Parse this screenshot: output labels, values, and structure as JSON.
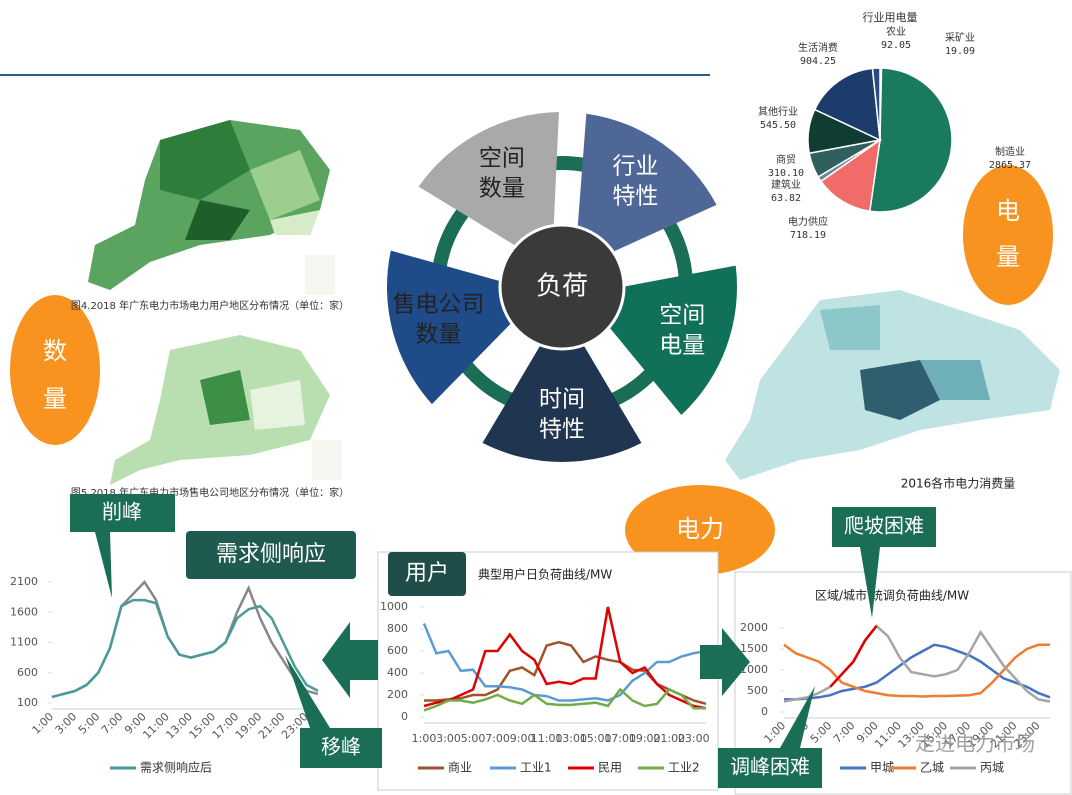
{
  "center": {
    "hub": "负荷",
    "petals": [
      [
        "空间",
        "数量"
      ],
      [
        "行业",
        "特性"
      ],
      [
        "空间",
        "电量"
      ],
      [
        "时间",
        "特性"
      ],
      [
        "售电公司",
        "数量"
      ]
    ]
  },
  "ovals": {
    "quantity": [
      "数",
      "量"
    ],
    "energy": [
      "电",
      "量"
    ],
    "power": "电力"
  },
  "maps": {
    "users_caption": "图4.2018 年广东电力市场电力用户地区分布情况（单位：家）",
    "sellers_caption": "图5.2018 年广东电力市场售电公司地区分布情况（单位：家）",
    "consumption_caption": "2016各市电力消费量"
  },
  "callouts": {
    "peak_shaving": "削峰",
    "demand_response": "需求侧响应",
    "peak_shifting": "移峰",
    "users": "用户",
    "ramping": "爬坡困难",
    "regulation": "调峰困难"
  },
  "watermark": "走进电力市场",
  "pie": {
    "title": "行业用电量",
    "categories": [
      "采矿业",
      "制造业",
      "电力供应",
      "建筑业",
      "商贸",
      "其他行业",
      "生活消费",
      "农业"
    ],
    "values": [
      19.09,
      2865.37,
      718.19,
      63.82,
      310.1,
      545.5,
      904.25,
      92.05
    ],
    "value_labels": [
      "19.09",
      "2865.37",
      "718.19",
      "63.82",
      "310.10",
      "545.50",
      "904.25",
      "92.05"
    ],
    "colors": [
      "#1e3a5f",
      "#1a7a5e",
      "#f26b6b",
      "#6a8a9a",
      "#2f5f5f",
      "#0f3d33",
      "#1c3d6b",
      "#2c4c80"
    ]
  },
  "demand_chart": {
    "categories": [
      "1:00",
      null,
      "3:00",
      null,
      "5:00",
      null,
      "7:00",
      null,
      "9:00",
      null,
      "11:00",
      null,
      "13:00",
      null,
      "15:00",
      null,
      "17:00",
      null,
      "19:00",
      null,
      "21:00",
      null,
      "23:00",
      null
    ],
    "ylim": [
      100,
      2100
    ],
    "yticks": [
      100,
      600,
      1100,
      1600,
      2100
    ],
    "series": [
      {
        "color": "#888888",
        "values": [
          200,
          250,
          300,
          400,
          600,
          1000,
          1700,
          1900,
          2100,
          1800,
          1200,
          900,
          850,
          900,
          950,
          1100,
          1600,
          2000,
          1500,
          1100,
          800,
          500,
          300,
          250
        ]
      },
      {
        "name": "需求侧响应后",
        "color": "#4a9a9a",
        "values": [
          200,
          250,
          300,
          400,
          600,
          1000,
          1700,
          1800,
          1800,
          1750,
          1200,
          900,
          850,
          900,
          950,
          1100,
          1500,
          1650,
          1700,
          1500,
          1100,
          700,
          400,
          300
        ]
      }
    ]
  },
  "user_chart": {
    "title": "典型用户日负荷曲线/MW",
    "categories": [
      "1:00",
      null,
      "3:00",
      null,
      "5:00",
      null,
      "7:00",
      null,
      "9:00",
      null,
      "11:00",
      null,
      "13:00",
      null,
      "15:00",
      null,
      "17:00",
      null,
      "19:00",
      null,
      "21:00",
      null,
      "23:00",
      null
    ],
    "ylim": [
      0,
      1000
    ],
    "yticks": [
      0,
      200,
      400,
      600,
      800,
      1000
    ],
    "series": [
      {
        "name": "商业",
        "color": "#a0522d",
        "values": [
          150,
          150,
          160,
          170,
          200,
          200,
          250,
          420,
          450,
          380,
          650,
          680,
          650,
          500,
          550,
          520,
          500,
          430,
          420,
          300,
          250,
          200,
          150,
          120
        ]
      },
      {
        "name": "工业1",
        "color": "#5b9bd5",
        "values": [
          850,
          580,
          600,
          420,
          430,
          280,
          280,
          270,
          250,
          200,
          190,
          150,
          150,
          160,
          170,
          150,
          200,
          330,
          400,
          500,
          500,
          550,
          580,
          600
        ]
      },
      {
        "name": "民用",
        "color": "#e00000",
        "values": [
          100,
          130,
          150,
          200,
          250,
          600,
          600,
          750,
          600,
          520,
          300,
          320,
          300,
          350,
          350,
          1000,
          500,
          400,
          450,
          300,
          200,
          150,
          100,
          80
        ]
      },
      {
        "name": "工业2",
        "color": "#70ad47",
        "values": [
          60,
          100,
          150,
          150,
          130,
          160,
          200,
          150,
          120,
          200,
          120,
          110,
          110,
          120,
          130,
          100,
          250,
          150,
          100,
          120,
          250,
          200,
          80,
          80
        ]
      }
    ]
  },
  "city_chart": {
    "title": "区域/城市 统调负荷曲线/MW",
    "categories": [
      "1:00",
      null,
      "3:00",
      null,
      "5:00",
      null,
      "7:00",
      null,
      "9:00",
      null,
      "11:00",
      null,
      "13:00",
      null,
      "15:00",
      null,
      "17:00",
      null,
      "19:00",
      null,
      "21:00",
      null,
      "23:00",
      null
    ],
    "ylim": [
      0,
      2000
    ],
    "yticks": [
      0,
      500,
      1000,
      1500,
      2000
    ],
    "series": [
      {
        "name": "甲城",
        "color": "#4472c4",
        "values": [
          300,
          300,
          320,
          350,
          400,
          500,
          550,
          600,
          700,
          900,
          1100,
          1300,
          1450,
          1600,
          1550,
          1450,
          1350,
          1200,
          1000,
          800,
          700,
          600,
          450,
          350
        ]
      },
      {
        "name": "乙城",
        "color": "#ed7d31",
        "values": [
          1600,
          1400,
          1300,
          1200,
          1000,
          700,
          600,
          500,
          450,
          400,
          380,
          380,
          370,
          380,
          380,
          390,
          400,
          450,
          700,
          1000,
          1300,
          1500,
          1600,
          1600
        ]
      },
      {
        "name": "丙城",
        "color": "#a5a5a5",
        "values": [
          250,
          300,
          350,
          450,
          600,
          900,
          1200,
          1700,
          2050,
          1800,
          1300,
          950,
          900,
          850,
          900,
          1000,
          1400,
          1900,
          1500,
          1100,
          800,
          500,
          300,
          250
        ]
      },
      {
        "color": "#e00000",
        "values": [
          null,
          null,
          null,
          null,
          600,
          900,
          1200,
          1700,
          2050,
          null,
          null,
          null,
          null,
          null,
          null,
          null,
          null,
          null,
          null,
          null,
          null,
          null,
          null,
          null
        ]
      }
    ]
  }
}
